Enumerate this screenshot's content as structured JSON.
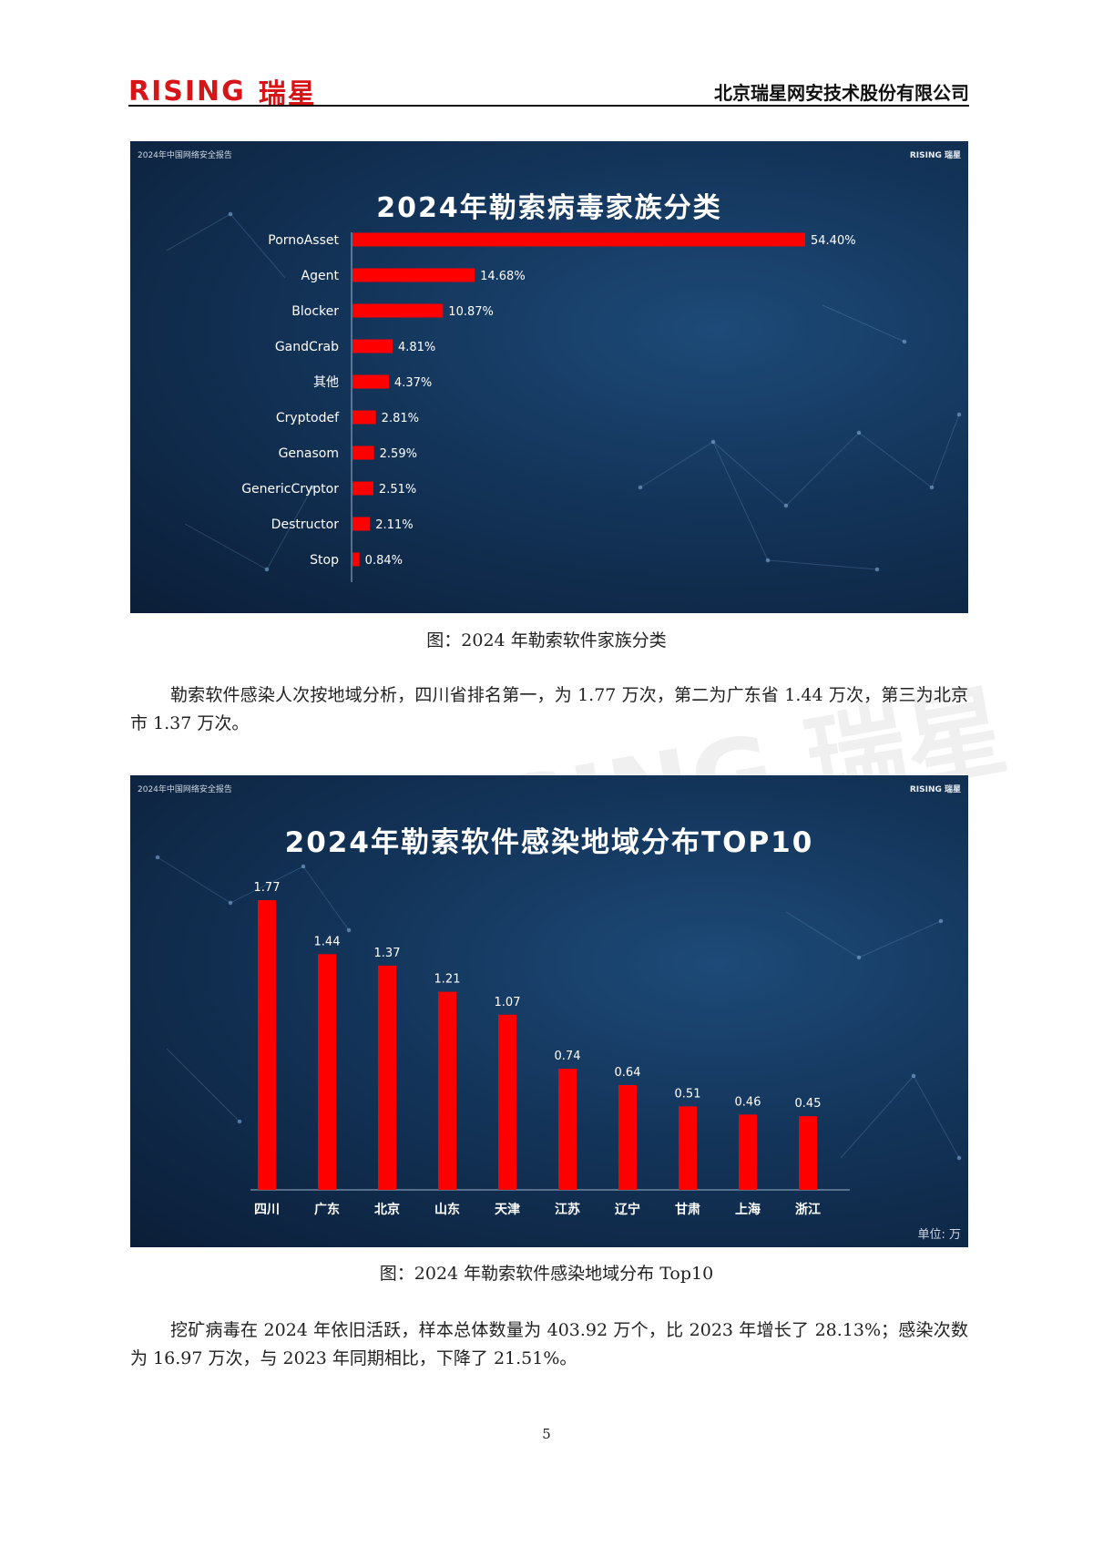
{
  "header": {
    "logo_latin": "RISING",
    "logo_cn": "瑞星",
    "company": "北京瑞星网安技术股份有限公司"
  },
  "watermark": "RISING 瑞星",
  "panel_mini_title": "2024年中国网络安全报告",
  "panel_mini_brand": "RISING 瑞星",
  "figure1": {
    "caption": "图：2024 年勒索软件家族分类"
  },
  "paragraph1": "勒索软件感染人次按地域分析，四川省排名第一，为 1.77 万次，第二为广东省 1.44 万次，第三为北京市 1.37 万次。",
  "figure2": {
    "caption": "图：2024 年勒索软件感染地域分布 Top10",
    "unit": "单位: 万"
  },
  "paragraph2": "挖矿病毒在 2024 年依旧活跃，样本总体数量为 403.92 万个，比 2023 年增长了 28.13%；感染次数为 16.97 万次，与 2023 年同期相比，下降了 21.51%。",
  "page_number": "5",
  "colors": {
    "bar": "#ff0000",
    "brand": "#d71418",
    "panel_bg": "#133459"
  },
  "chart_data": [
    {
      "type": "bar",
      "orientation": "horizontal",
      "title": "2024年勒索病毒家族分类",
      "categories": [
        "PornoAsset",
        "Agent",
        "Blocker",
        "GandCrab",
        "其他",
        "Cryptodef",
        "Genasom",
        "GenericCryptor",
        "Destructor",
        "Stop"
      ],
      "values": [
        54.4,
        14.68,
        10.87,
        4.81,
        4.37,
        2.81,
        2.59,
        2.51,
        2.11,
        0.84
      ],
      "labels": [
        "54.40%",
        "14.68%",
        "10.87%",
        "4.81%",
        "4.37%",
        "2.81%",
        "2.59%",
        "2.51%",
        "2.11%",
        "0.84%"
      ],
      "xlabel": "",
      "ylabel": "",
      "xlim": [
        0,
        54.4
      ]
    },
    {
      "type": "bar",
      "orientation": "vertical",
      "title": "2024年勒索软件感染地域分布TOP10",
      "categories": [
        "四川",
        "广东",
        "北京",
        "山东",
        "天津",
        "江苏",
        "辽宁",
        "甘肃",
        "上海",
        "浙江"
      ],
      "values": [
        1.77,
        1.44,
        1.37,
        1.21,
        1.07,
        0.74,
        0.64,
        0.51,
        0.46,
        0.45
      ],
      "labels": [
        "1.77",
        "1.44",
        "1.37",
        "1.21",
        "1.07",
        "0.74",
        "0.64",
        "0.51",
        "0.46",
        "0.45"
      ],
      "xlabel": "",
      "ylabel": "",
      "ylim": [
        0,
        1.77
      ]
    }
  ]
}
